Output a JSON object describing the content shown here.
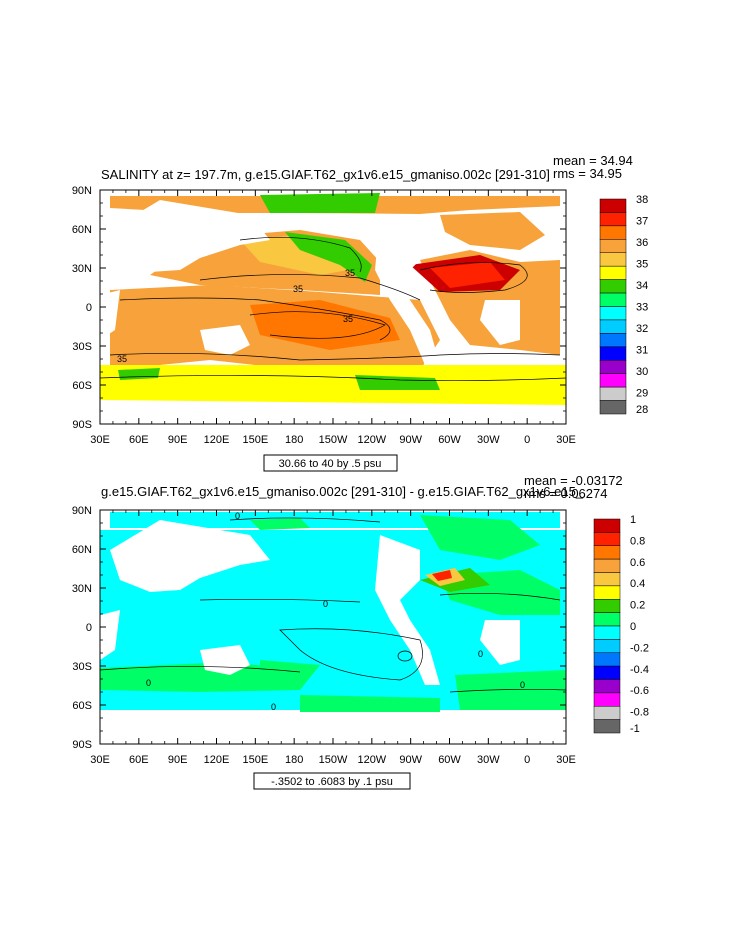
{
  "chart_data": [
    {
      "type": "heatmap",
      "title": "SALINITY at z= 197.7m, g.e15.GIAF.T62_gx1v6.e15_gmaniso.002c [291-310]",
      "stats": {
        "mean": "mean = 34.94",
        "rms": "rms = 34.95"
      },
      "xticks": [
        "30E",
        "60E",
        "90E",
        "120E",
        "150E",
        "180",
        "150W",
        "120W",
        "90W",
        "60W",
        "30W",
        "0",
        "30E"
      ],
      "yticks": [
        "90N",
        "60N",
        "30N",
        "0",
        "30S",
        "60S",
        "90S"
      ],
      "contour_info": "30.66 to 40 by .5 psu",
      "contour_labels": [
        "35",
        "35",
        "35",
        "35"
      ],
      "colorbar": {
        "labels": [
          "38",
          "37",
          "36",
          "35",
          "34",
          "33",
          "32",
          "31",
          "30",
          "29",
          "28"
        ],
        "colors": [
          "#cc0000",
          "#ff2200",
          "#ff7700",
          "#f7a23a",
          "#f9c840",
          "#ffff00",
          "#33cc00",
          "#00ff66",
          "#00ffff",
          "#00ccff",
          "#0077ff",
          "#0000ff",
          "#9900cc",
          "#ff00ff",
          "#cccccc",
          "#666666"
        ]
      }
    },
    {
      "type": "heatmap",
      "title": "g.e15.GIAF.T62_gx1v6.e15_gmaniso.002c [291-310] - g.e15.GIAF.T62_gx1v6.e15_",
      "stats": {
        "mean": "mean = -0.03172",
        "rms": "rms = 0.06274"
      },
      "xticks": [
        "30E",
        "60E",
        "90E",
        "120E",
        "150E",
        "180",
        "150W",
        "120W",
        "90W",
        "60W",
        "30W",
        "0",
        "30E"
      ],
      "yticks": [
        "90N",
        "60N",
        "30N",
        "0",
        "30S",
        "60S",
        "90S"
      ],
      "contour_info": "-.3502 to .6083 by .1 psu",
      "contour_labels": [
        "0",
        "0",
        "0",
        "0",
        "0",
        "0"
      ],
      "colorbar": {
        "labels": [
          "1",
          "0.8",
          "0.6",
          "0.4",
          "0.2",
          "0",
          "-0.2",
          "-0.4",
          "-0.6",
          "-0.8",
          "-1"
        ],
        "colors": [
          "#cc0000",
          "#ff2200",
          "#ff7700",
          "#f7a23a",
          "#f9c840",
          "#ffff00",
          "#33cc00",
          "#00ff66",
          "#00ffff",
          "#00ccff",
          "#0077ff",
          "#0000ff",
          "#9900cc",
          "#ff00ff",
          "#cccccc",
          "#666666"
        ]
      }
    }
  ]
}
